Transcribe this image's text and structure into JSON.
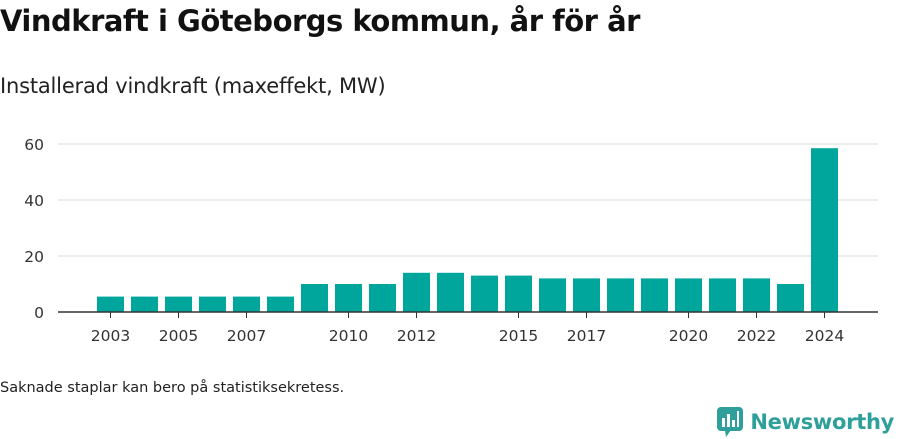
{
  "title": "Vindkraft i Göteborgs kommun, år för år",
  "subtitle": "Installerad vindkraft (maxeffekt, MW)",
  "footnote": "Saknade staplar kan bero på statistiksekretess.",
  "brand": {
    "name": "Newsworthy",
    "icon": "newsworthy-logo-icon",
    "color": "#2e9f9a"
  },
  "colors": {
    "bar": "#00a69c",
    "grid": "#d9d9d9",
    "axis": "#333333"
  },
  "chart_data": {
    "type": "bar",
    "categories": [
      "2003",
      "2004",
      "2005",
      "2006",
      "2007",
      "2008",
      "2009",
      "2010",
      "2011",
      "2012",
      "2013",
      "2014",
      "2015",
      "2016",
      "2017",
      "2018",
      "2019",
      "2020",
      "2021",
      "2022",
      "2023",
      "2024"
    ],
    "x_tick_labels": [
      "2003",
      "2005",
      "2007",
      "2010",
      "2012",
      "2015",
      "2017",
      "2020",
      "2022",
      "2024"
    ],
    "values": [
      5.5,
      5.5,
      5.5,
      5.5,
      5.5,
      5.5,
      10,
      10,
      10,
      14,
      14,
      13,
      13,
      12,
      12,
      12,
      12,
      12,
      12,
      12,
      10,
      58.5
    ],
    "y_ticks": [
      0,
      20,
      40,
      60
    ],
    "ylim": [
      0,
      60
    ],
    "grid": true,
    "title": "Vindkraft i Göteborgs kommun, år för år",
    "xlabel": "",
    "ylabel": ""
  }
}
